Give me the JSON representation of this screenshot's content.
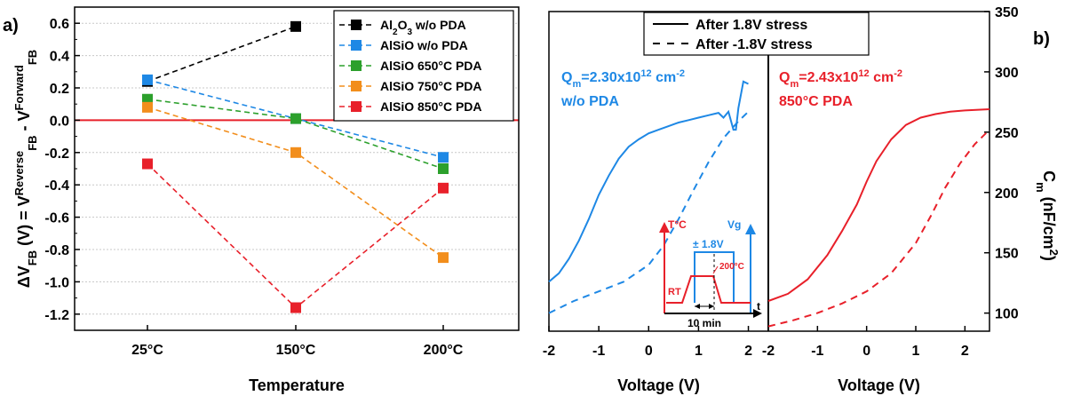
{
  "chart_data": [
    {
      "panel_label": "a)",
      "type": "scatter",
      "xlabel": "Temperature",
      "ylabel_html": "ΔV<sub>FB</sub> (V) = V<sup>Reverse</sup><sub>FB</sub> - V<sup>Forward</sup><sub>FB</sub>",
      "categories": [
        "25°C",
        "150°C",
        "200°C"
      ],
      "ylim": [
        -1.3,
        0.7
      ],
      "yticks": [
        -1.2,
        -1.0,
        -0.8,
        -0.6,
        -0.4,
        -0.2,
        0.0,
        0.2,
        0.4,
        0.6
      ],
      "ytick_labels": [
        "-1.2",
        "-1.0",
        "-0.8",
        "-0.6",
        "-0.4",
        "-0.2",
        "0.0",
        "0.2",
        "0.4",
        "0.6"
      ],
      "grid": true,
      "reference_line": {
        "y": 0.0,
        "color": "#e8202a"
      },
      "legend_position": "top-right",
      "series": [
        {
          "name": "Al<sub>2</sub>O<sub>3</sub> w/o PDA",
          "color": "#000000",
          "x": [
            0,
            1
          ],
          "values": [
            0.24,
            0.58
          ]
        },
        {
          "name": "AlSiO w/o PDA",
          "color": "#1e88e5",
          "x": [
            0,
            1,
            2
          ],
          "values": [
            0.25,
            0.01,
            -0.23
          ]
        },
        {
          "name": "AlSiO 650°C PDA",
          "color": "#2ca02c",
          "x": [
            0,
            1,
            2
          ],
          "values": [
            0.13,
            0.01,
            -0.3
          ]
        },
        {
          "name": "AlSiO 750°C PDA",
          "color": "#f28e1c",
          "x": [
            0,
            1,
            2
          ],
          "values": [
            0.08,
            -0.2,
            -0.85
          ]
        },
        {
          "name": "AlSiO 850°C PDA",
          "color": "#e8202a",
          "x": [
            0,
            1,
            2
          ],
          "values": [
            -0.27,
            -1.16,
            -0.42
          ]
        }
      ]
    },
    {
      "panel_label": "b)",
      "type": "line",
      "xlabel": "Voltage (V)",
      "ylabel_html": "C<sub>m</sub> (nF/cm<sup>2</sup>)",
      "ylim": [
        85,
        350
      ],
      "yticks": [
        100,
        150,
        200,
        250,
        300,
        350
      ],
      "ytick_labels": [
        "100",
        "150",
        "200",
        "250",
        "300",
        "350"
      ],
      "left_panel": {
        "xlim": [
          -2,
          2.4
        ],
        "xticks": [
          -2,
          -1,
          0,
          1,
          2
        ],
        "xtick_labels": [
          "-2",
          "-1",
          "0",
          "1",
          "2"
        ],
        "annotation_html": [
          "Q<tspan baseline-shift=\"sub\" font-size=\"11\">m</tspan>=2.30x10<tspan baseline-shift=\"super\" font-size=\"11\">12</tspan> cm<tspan baseline-shift=\"super\" font-size=\"11\">-2</tspan>",
          "w/o PDA"
        ],
        "color": "#1e88e5",
        "series": [
          {
            "style": "solid",
            "x": [
              -2.0,
              -1.8,
              -1.6,
              -1.4,
              -1.2,
              -1.0,
              -0.8,
              -0.6,
              -0.4,
              -0.2,
              0.0,
              0.2,
              0.4,
              0.6,
              0.8,
              1.0,
              1.2,
              1.4,
              1.5,
              1.6,
              1.7,
              1.75,
              1.8,
              1.9,
              2.0
            ],
            "values": [
              126,
              133,
              145,
              160,
              178,
              198,
              214,
              228,
              238,
              244,
              249,
              252,
              255,
              258,
              260,
              262,
              264,
              266,
              262,
              267,
              252,
              252,
              270,
              292,
              290
            ]
          },
          {
            "style": "dashed",
            "x": [
              -2.0,
              -1.5,
              -1.0,
              -0.5,
              0.0,
              0.3,
              0.6,
              0.9,
              1.2,
              1.5,
              1.8,
              2.0
            ],
            "values": [
              100,
              110,
              118,
              126,
              140,
              156,
              178,
              202,
              225,
              245,
              259,
              267
            ]
          }
        ]
      },
      "right_panel": {
        "xlim": [
          -2,
          2.5
        ],
        "xticks": [
          -2,
          -1,
          0,
          1,
          2
        ],
        "xtick_labels": [
          "-2",
          "-1",
          "0",
          "1",
          "2"
        ],
        "annotation_html": [
          "Q<tspan baseline-shift=\"sub\" font-size=\"11\">m</tspan>=2.43x10<tspan baseline-shift=\"super\" font-size=\"11\">12</tspan> cm<tspan baseline-shift=\"super\" font-size=\"11\">-2</tspan>",
          "850°C PDA"
        ],
        "color": "#e8202a",
        "series": [
          {
            "style": "solid",
            "x": [
              -2.0,
              -1.6,
              -1.2,
              -0.8,
              -0.5,
              -0.2,
              0.0,
              0.2,
              0.5,
              0.8,
              1.1,
              1.4,
              1.7,
              2.0,
              2.5
            ],
            "values": [
              110,
              116,
              128,
              148,
              168,
              190,
              209,
              226,
              244,
              256,
              262,
              265,
              267,
              268,
              269
            ]
          },
          {
            "style": "dashed",
            "x": [
              -2.0,
              -1.5,
              -1.0,
              -0.5,
              0.0,
              0.5,
              1.0,
              1.3,
              1.6,
              1.9,
              2.2,
              2.5
            ],
            "values": [
              89,
              94,
              100,
              108,
              118,
              133,
              158,
              180,
              204,
              224,
              240,
              252
            ]
          }
        ]
      },
      "legend": [
        {
          "label": "After 1.8V stress",
          "style": "solid"
        },
        {
          "label": "After -1.8V stress",
          "style": "dashed"
        }
      ],
      "inset": {
        "left_axis_label": "T°C",
        "right_axis_label": "Vg",
        "x_axis_label": "t",
        "voltage_label": "± 1.8V",
        "temp_label": "200°C",
        "rt_label": "RT",
        "duration_label": "10 min"
      }
    }
  ]
}
